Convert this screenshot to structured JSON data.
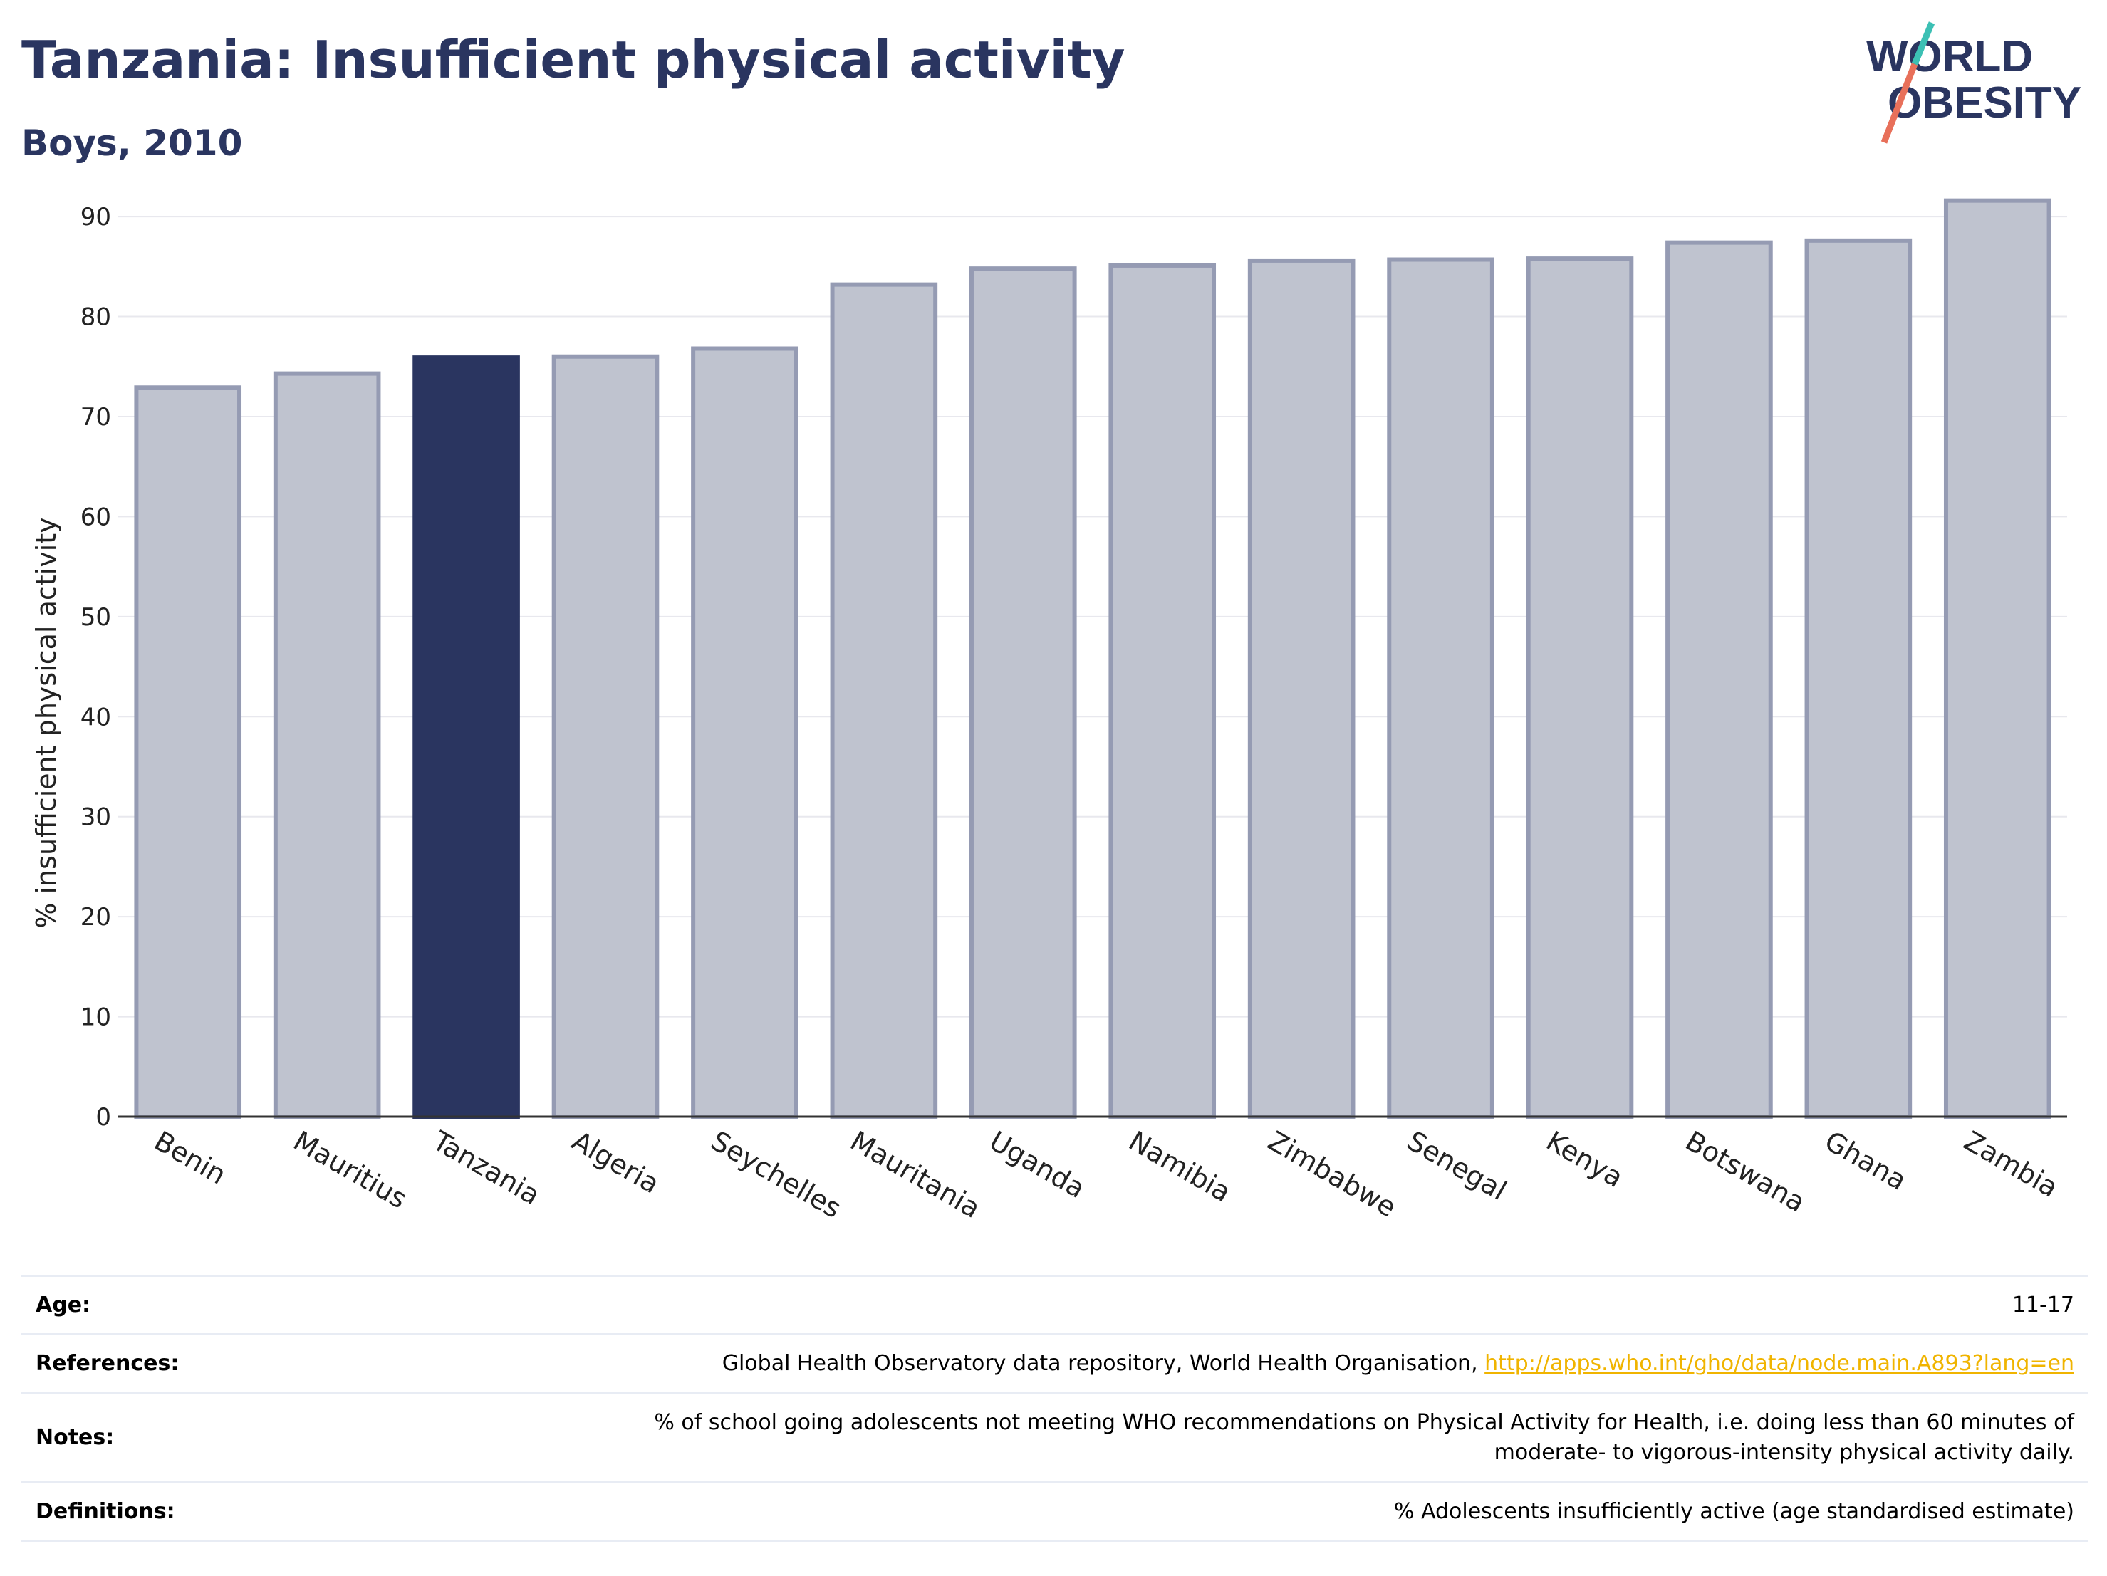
{
  "header": {
    "title": "Tanzania: Insufficient physical activity",
    "subtitle": "Boys, 2010"
  },
  "logo": {
    "line1": "WORLD",
    "line2": "OBESITY",
    "text_color": "#2a3560",
    "slash_color_top": "#3cc0b4",
    "slash_color_bottom": "#e8705a"
  },
  "colors": {
    "bar": "#bfc3cf",
    "bar_border": "#959bb3",
    "highlight": "#2a3560",
    "grid": "#e8e8ee",
    "axis": "#333333"
  },
  "chart_data": {
    "type": "bar",
    "categories": [
      "Benin",
      "Mauritius",
      "Tanzania",
      "Algeria",
      "Seychelles",
      "Mauritania",
      "Uganda",
      "Namibia",
      "Zimbabwe",
      "Senegal",
      "Kenya",
      "Botswana",
      "Ghana",
      "Zambia"
    ],
    "values": [
      72.9,
      74.3,
      75.9,
      76.0,
      76.8,
      83.2,
      84.8,
      85.1,
      85.6,
      85.7,
      85.8,
      87.4,
      87.6,
      91.6
    ],
    "highlight": "Tanzania",
    "ylabel": "% insufficient physical activity",
    "xlabel": "",
    "ylim": [
      0,
      93
    ],
    "yticks": [
      0,
      10,
      20,
      30,
      40,
      50,
      60,
      70,
      80,
      90
    ],
    "grid": true
  },
  "info": {
    "age_label": "Age:",
    "age_value": "11-17",
    "references_label": "References:",
    "references_text": "Global Health Observatory data repository, World Health Organisation, ",
    "references_link": "http://apps.who.int/gho/data/node.main.A893?lang=en",
    "notes_label": "Notes:",
    "notes_line1": "% of school going adolescents not meeting WHO recommendations on Physical Activity for Health, i.e. doing less than 60 minutes of",
    "notes_line2": "moderate- to vigorous-intensity physical activity daily.",
    "definitions_label": "Definitions:",
    "definitions_value": "% Adolescents insufficiently active (age standardised estimate)"
  }
}
